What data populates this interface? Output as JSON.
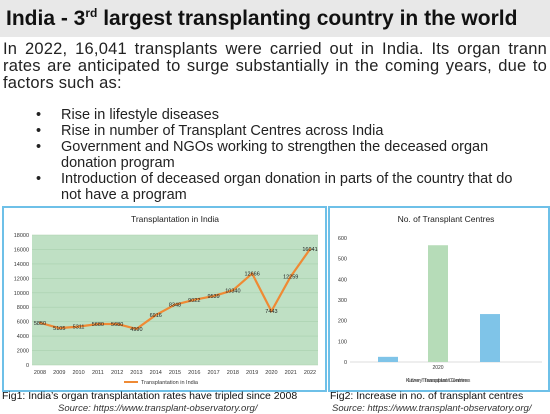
{
  "header": {
    "title_main": "India - 3",
    "title_sup": "rd",
    "title_rest": " largest transplanting country in the world"
  },
  "intro": "In 2022, 16,041 transplants were carried out in India. Its organ trann rates are anticipated to surge substantially in the coming years, due to factors such as:",
  "bullets": [
    "Rise in lifestyle diseases",
    "Rise in number of Transplant Centres across India",
    "Government and NGOs working to strengthen the deceased organ donation program",
    "Introduction of deceased organ donation in parts of the country that do not have a program"
  ],
  "bullet_symbol": "•",
  "colors": {
    "title_bar": "#e8e8e8",
    "panel_border": "#6ec0e8",
    "plot_bg": "#bfe0c4",
    "line": "#ef8a34",
    "bar_light": "#7fc4e8",
    "bar_green": "#b6dcb8"
  },
  "chart_data": [
    {
      "type": "line",
      "title": "Transplantation in India",
      "x": [
        "2008",
        "2009",
        "2010",
        "2011",
        "2012",
        "2013",
        "2014",
        "2015",
        "2016",
        "2017",
        "2018",
        "2019",
        "2020",
        "2021",
        "2022"
      ],
      "series": [
        {
          "name": "Transplantation in India",
          "values": [
            5850,
            5105,
            5311,
            5680,
            5680,
            4990,
            6916,
            8348,
            9022,
            9539,
            10340,
            12666,
            7443,
            12259,
            16041
          ],
          "labels": [
            "5850",
            "5105",
            "5311",
            "5680",
            "5680",
            "4990",
            "6916",
            "8348",
            "9022",
            "9539",
            "10340",
            "12666",
            "7443",
            "12259",
            "16041"
          ]
        }
      ],
      "yticks": [
        "0",
        "2000",
        "4000",
        "6000",
        "8000",
        "10000",
        "12000",
        "14000",
        "16000",
        "18000"
      ],
      "ylim": [
        0,
        18000
      ],
      "legend": "bottom",
      "grid": true
    },
    {
      "type": "bar",
      "title": "No. of Transplant Centres",
      "categories": [
        "",
        "2020",
        ""
      ],
      "values": [
        25,
        565,
        232
      ],
      "yticks": [
        "0",
        "100",
        "200",
        "300",
        "400",
        "500",
        "600"
      ],
      "ylim": [
        0,
        600
      ],
      "legend_text": "Liver Transplant Centres",
      "legend_overlap_text": "Kidney Transplant Centres",
      "grid": false
    }
  ],
  "captions": {
    "fig1": "Fig1: India’s organ transplantation rates have tripled since 2008",
    "fig1_source": "Source: https://www.transplant-observatory.org/",
    "fig2": "Fig2: Increase in no. of transplant centres",
    "fig2_source": "Source: https://www.transplant-observatory.org/"
  }
}
